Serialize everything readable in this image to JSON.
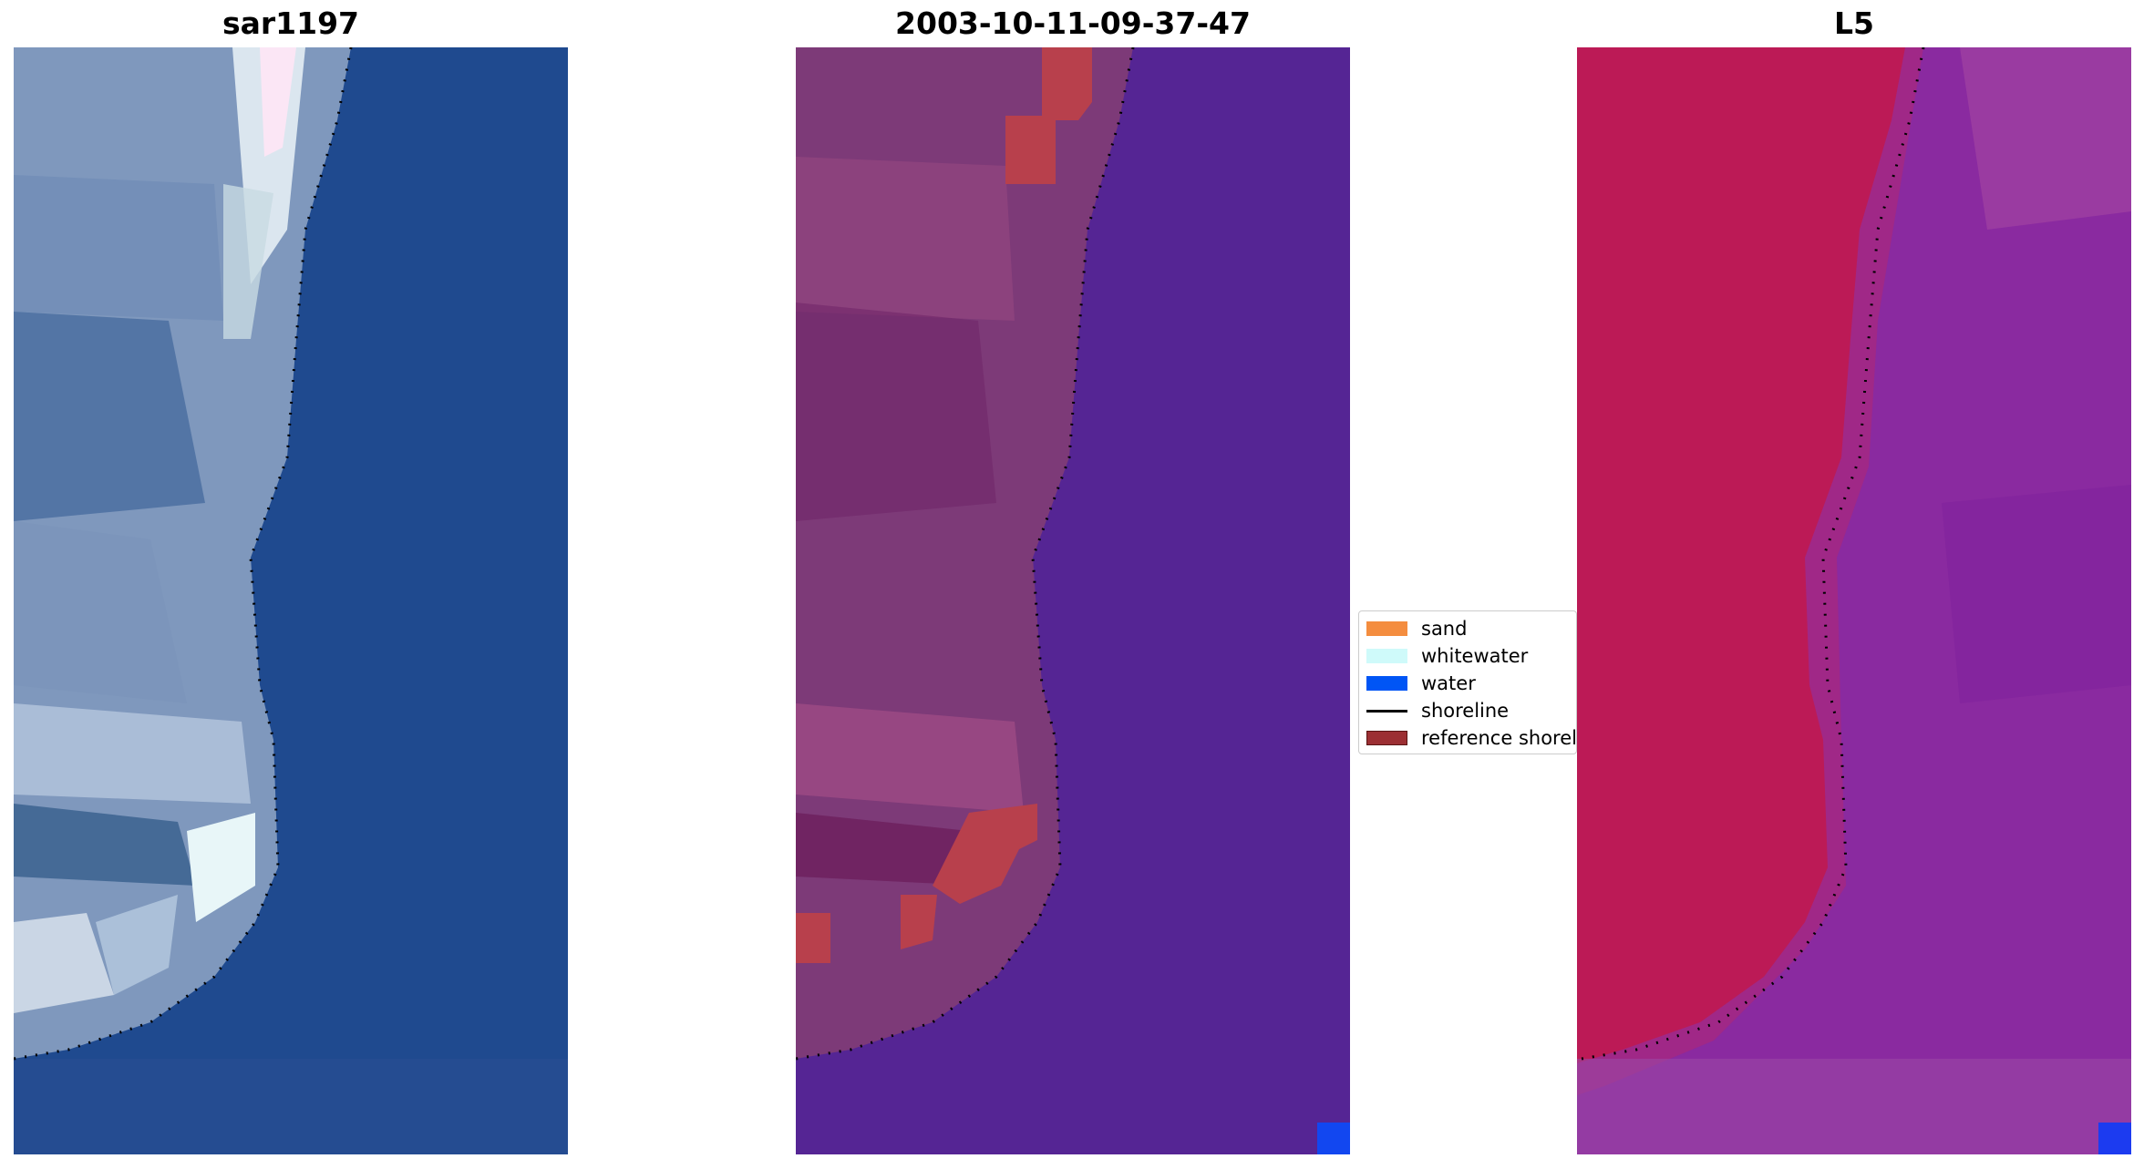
{
  "panels": [
    {
      "title": "sar1197"
    },
    {
      "title": "2003-10-11-09-37-47"
    },
    {
      "title": "L5"
    }
  ],
  "legend": {
    "items": [
      {
        "label": "sand",
        "color": "#f48d3f",
        "kind": "patch"
      },
      {
        "label": "whitewater",
        "color": "#cffafa",
        "kind": "patch"
      },
      {
        "label": "water",
        "color": "#0055f5",
        "kind": "patch"
      },
      {
        "label": "shoreline",
        "color": "#000000",
        "kind": "line"
      },
      {
        "label": "reference shoreline",
        "color": "#9c2f33",
        "kind": "patch"
      }
    ]
  },
  "colors": {
    "rgb_water": "#1f4a8f",
    "rgb_land": "#8ea5c6",
    "rgb_whitewater": "#e9f5f7",
    "class_water": "#552594",
    "class_land": "#7d3a78",
    "class_sand_overlay": "#b8404c",
    "class_water_pixel": "#1247f0",
    "index_land": "#c20f3e",
    "index_water": "#8a2aa0",
    "shoreline_dots": "#000000"
  }
}
